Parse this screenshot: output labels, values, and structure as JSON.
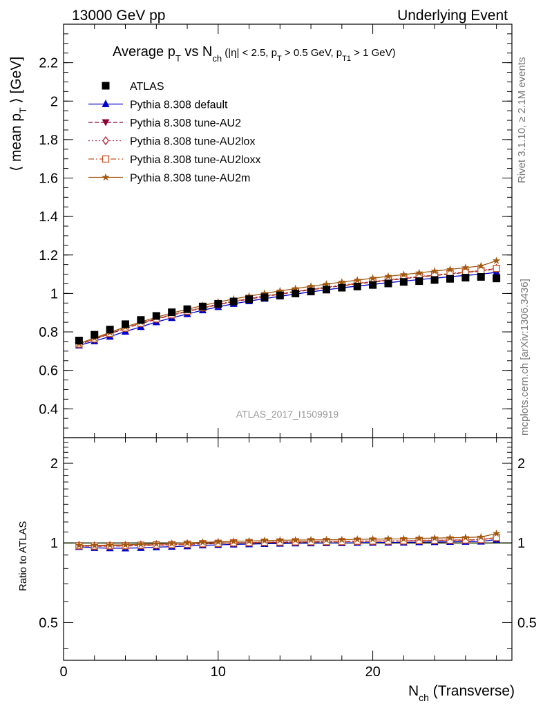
{
  "header": {
    "left": "13000 GeV pp",
    "right": "Underlying Event"
  },
  "side_labels": {
    "rivet": "Rivet 3.1.10, ≥ 2.1M events",
    "mcplots": "mcplots.cern.ch [arXiv:1306.3436]"
  },
  "watermark": "ATLAS_2017_I1509919",
  "colors": {
    "atlas": "#000000",
    "default": "#0000cc",
    "au2": "#8b0039",
    "au2lox": "#b2223b",
    "au2loxx": "#c8501e",
    "au2m": "#a0580f",
    "ratio_band": "#c8f0a0"
  },
  "chart_data": [
    {
      "id": "main",
      "type": "line",
      "title": "Average p_T vs N_ch (|η| < 2.5, p_T > 0.5 GeV, p_T1 > 1 GeV)",
      "title_parts": {
        "prefix": "Average p",
        "pt_sub": "T",
        "vs": " vs N",
        "nch_sub": "ch",
        "cuts_a": " (|η| < 2.5, p",
        "cuts_b": " > 0.5 GeV, p",
        "cuts_sub_t1": "T1",
        "cuts_c": " > 1 GeV)"
      },
      "ylabel": "⟨ mean p_T ⟩ [GeV]",
      "ylabel_parts": {
        "a": "⟨ mean p",
        "sub": "T",
        "b": " ⟩ [GeV]"
      },
      "xlim": [
        0,
        29
      ],
      "ylim": [
        0.25,
        2.4
      ],
      "yticks": [
        0.4,
        0.6,
        0.8,
        1,
        1.2,
        1.4,
        1.6,
        1.8,
        2,
        2.2
      ],
      "ytick_labels": [
        "0.4",
        "0.6",
        "0.8",
        "1",
        "1.2",
        "1.4",
        "1.6",
        "1.8",
        "2",
        "2.2"
      ],
      "x": [
        1,
        2,
        3,
        4,
        5,
        6,
        7,
        8,
        9,
        10,
        11,
        12,
        13,
        14,
        15,
        16,
        17,
        18,
        19,
        20,
        21,
        22,
        23,
        24,
        25,
        26,
        27,
        28
      ],
      "series": [
        {
          "key": "atlas",
          "name": "ATLAS",
          "marker": "square",
          "line": "none",
          "values": [
            0.755,
            0.785,
            0.812,
            0.84,
            0.862,
            0.883,
            0.902,
            0.918,
            0.932,
            0.946,
            0.958,
            0.97,
            0.98,
            0.99,
            1.0,
            1.01,
            1.02,
            1.03,
            1.036,
            1.044,
            1.052,
            1.06,
            1.064,
            1.07,
            1.076,
            1.082,
            1.086,
            1.078
          ]
        },
        {
          "key": "default",
          "name": "Pythia 8.308 default",
          "marker": "triangle",
          "line": "solid",
          "values": [
            0.73,
            0.752,
            0.776,
            0.802,
            0.826,
            0.851,
            0.873,
            0.893,
            0.913,
            0.93,
            0.946,
            0.96,
            0.973,
            0.985,
            0.997,
            1.008,
            1.019,
            1.029,
            1.038,
            1.047,
            1.056,
            1.064,
            1.072,
            1.079,
            1.087,
            1.094,
            1.1,
            1.11
          ]
        },
        {
          "key": "au2",
          "name": "Pythia 8.308 tune-AU2",
          "marker": "triangle-down",
          "line": "dashed",
          "values": [
            0.735,
            0.762,
            0.79,
            0.818,
            0.843,
            0.866,
            0.887,
            0.906,
            0.924,
            0.941,
            0.957,
            0.971,
            0.984,
            0.996,
            1.008,
            1.019,
            1.03,
            1.04,
            1.05,
            1.059,
            1.068,
            1.077,
            1.085,
            1.093,
            1.101,
            1.109,
            1.116,
            1.128
          ]
        },
        {
          "key": "au2lox",
          "name": "Pythia 8.308 tune-AU2lox",
          "marker": "diamond",
          "line": "dotted",
          "values": [
            0.738,
            0.765,
            0.793,
            0.821,
            0.846,
            0.869,
            0.89,
            0.909,
            0.927,
            0.944,
            0.96,
            0.974,
            0.987,
            0.999,
            1.011,
            1.022,
            1.033,
            1.043,
            1.053,
            1.062,
            1.071,
            1.08,
            1.088,
            1.096,
            1.104,
            1.112,
            1.119,
            1.131
          ]
        },
        {
          "key": "au2loxx",
          "name": "Pythia 8.308 tune-AU2loxx",
          "marker": "square-open",
          "line": "dashdot",
          "values": [
            0.737,
            0.764,
            0.792,
            0.82,
            0.845,
            0.868,
            0.889,
            0.908,
            0.926,
            0.943,
            0.959,
            0.973,
            0.986,
            0.998,
            1.01,
            1.021,
            1.032,
            1.042,
            1.052,
            1.061,
            1.07,
            1.079,
            1.087,
            1.095,
            1.103,
            1.111,
            1.118,
            1.13
          ]
        },
        {
          "key": "au2m",
          "name": "Pythia 8.308 tune-AU2m",
          "marker": "star",
          "line": "solid",
          "values": [
            0.74,
            0.768,
            0.797,
            0.826,
            0.852,
            0.876,
            0.898,
            0.918,
            0.937,
            0.955,
            0.971,
            0.986,
            1.0,
            1.013,
            1.025,
            1.037,
            1.048,
            1.059,
            1.069,
            1.079,
            1.089,
            1.098,
            1.107,
            1.116,
            1.125,
            1.134,
            1.143,
            1.17
          ]
        }
      ]
    },
    {
      "id": "ratio",
      "type": "line",
      "ylabel": "Ratio to ATLAS",
      "xlabel": "N_ch (Transverse)",
      "xlabel_parts": {
        "a": "N",
        "sub": "ch",
        "b": " (Transverse)"
      },
      "ylim": [
        0.36,
        2.5
      ],
      "log_y": true,
      "yticks": [
        0.5,
        1,
        2
      ],
      "ytick_labels": [
        "0.5",
        "1",
        "2"
      ],
      "xticks": [
        0,
        10,
        20
      ],
      "xtick_labels": [
        "0",
        "10",
        "20"
      ]
    }
  ]
}
